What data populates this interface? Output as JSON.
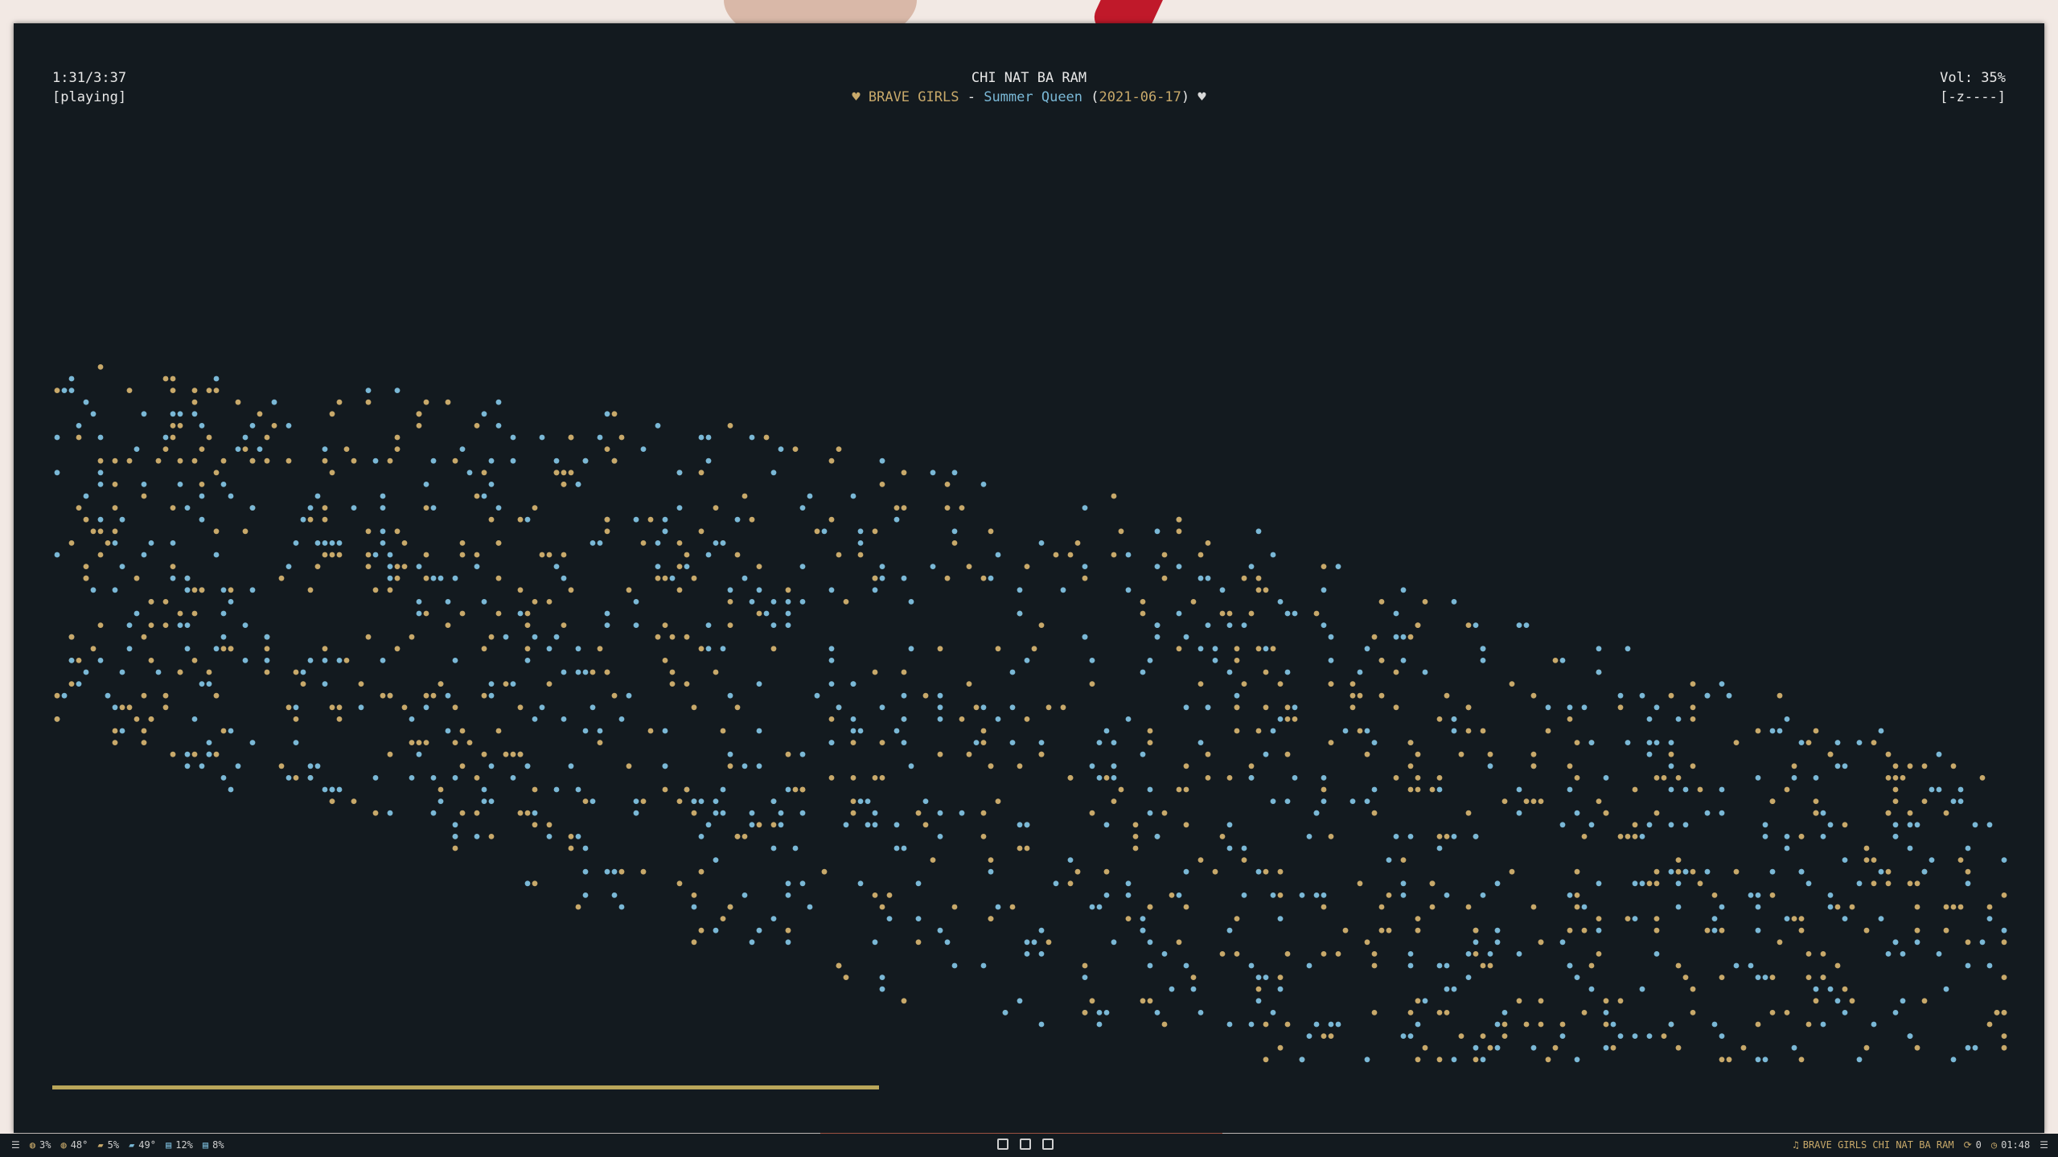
{
  "player": {
    "time": "1:31/3:37",
    "state": "[playing]",
    "title": "CHI NAT BA RAM",
    "artist": "BRAVE GIRLS",
    "separator": "-",
    "album": "Summer Queen",
    "date": "2021-06-17",
    "volume_label": "Vol: 35%",
    "volume_bar": "[-z----]",
    "progress_fraction": 0.42
  },
  "colors": {
    "background": "#131a1f",
    "dot_gold": "#c8a96a",
    "dot_blue": "#7ab8d6",
    "progress": "#b9a65a"
  },
  "statusbar": {
    "left": [
      {
        "icon": "menu-icon",
        "text": ""
      },
      {
        "icon": "cpu-icon",
        "text": "3%"
      },
      {
        "icon": "temperature-icon",
        "text": "48°"
      },
      {
        "icon": "gpu-icon",
        "text": "5%"
      },
      {
        "icon": "gpu-temperature-icon",
        "text": "49°"
      },
      {
        "icon": "disk-icon",
        "text": "12%"
      },
      {
        "icon": "memory-icon",
        "text": "8%"
      }
    ],
    "workspaces": [
      "1",
      "2",
      "3"
    ],
    "now_playing": "BRAVE GIRLS CHI NAT BA RAM",
    "updates": "0",
    "clock": "01:48"
  }
}
